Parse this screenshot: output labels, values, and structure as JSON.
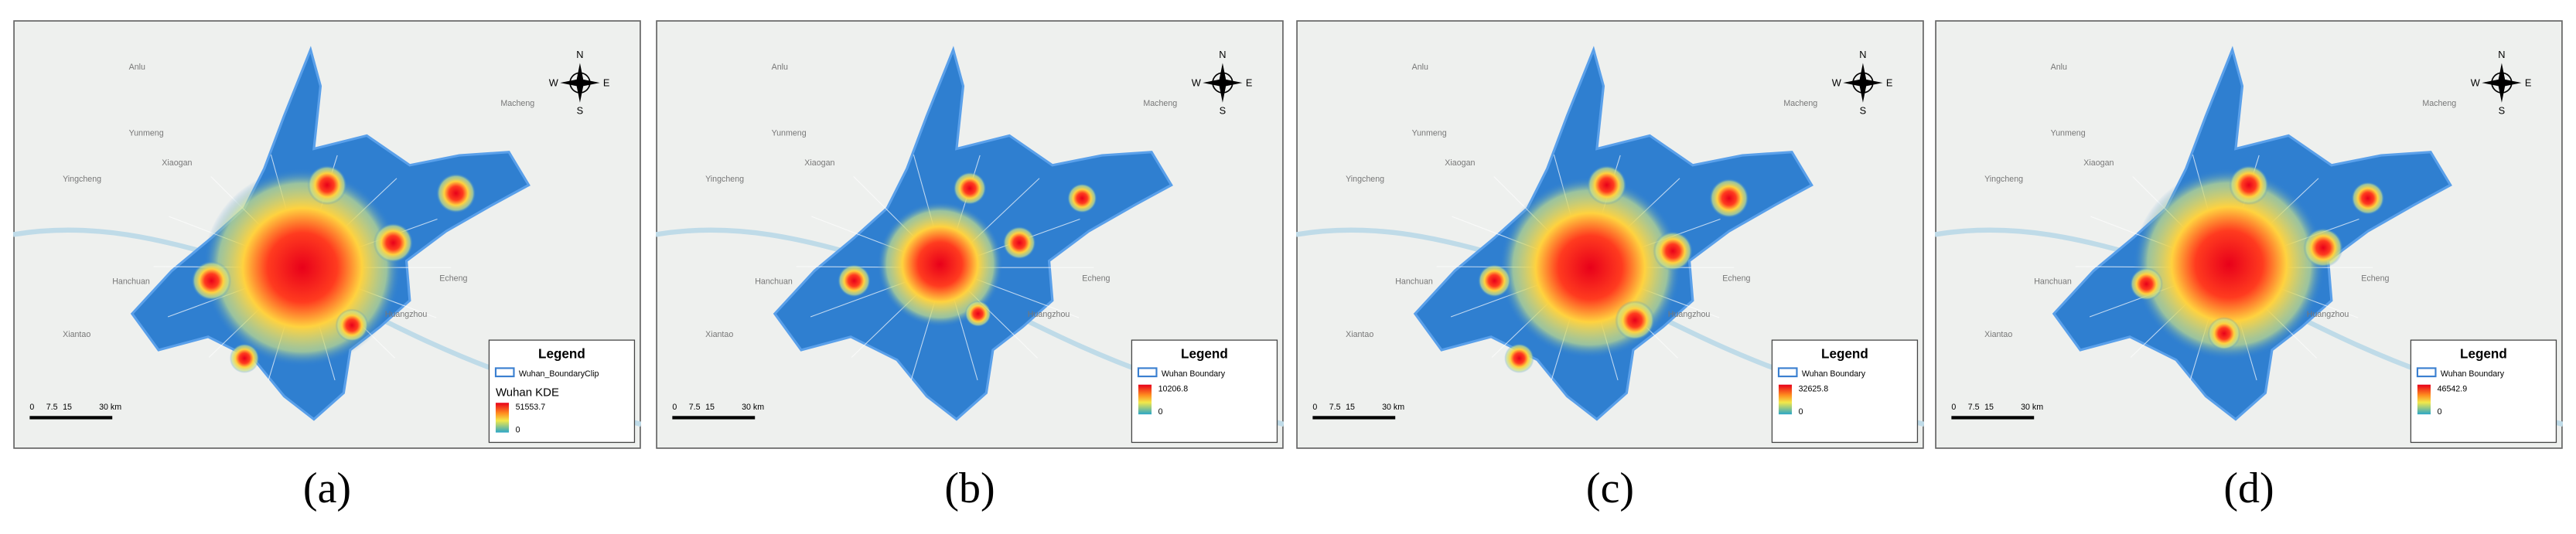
{
  "places": [
    "Anlu",
    "Yunmeng",
    "Xiaogan",
    "Yingcheng",
    "Macheng",
    "Hanchuan",
    "Xiantao",
    "Huangzhou",
    "Echeng"
  ],
  "compass": {
    "n": "N",
    "s": "S",
    "e": "E",
    "w": "W"
  },
  "scale_bar": [
    "0",
    "7.5",
    "15",
    "30 km"
  ],
  "panels": [
    {
      "label": "(a)",
      "legend_title": "Legend",
      "boundary_label": "Wuhan_BoundaryClip",
      "kde_label": "Wuhan KDE",
      "max": 51553.7,
      "min": 0
    },
    {
      "label": "(b)",
      "legend_title": "Legend",
      "boundary_label": "Wuhan Boundary",
      "max": 10206.8,
      "min": 0
    },
    {
      "label": "(c)",
      "legend_title": "Legend",
      "boundary_label": "Wuhan Boundary",
      "max": 32625.8,
      "min": 0
    },
    {
      "label": "(d)",
      "legend_title": "Legend",
      "boundary_label": "Wuhan Boundary",
      "max": 46542.9,
      "min": 0
    }
  ]
}
